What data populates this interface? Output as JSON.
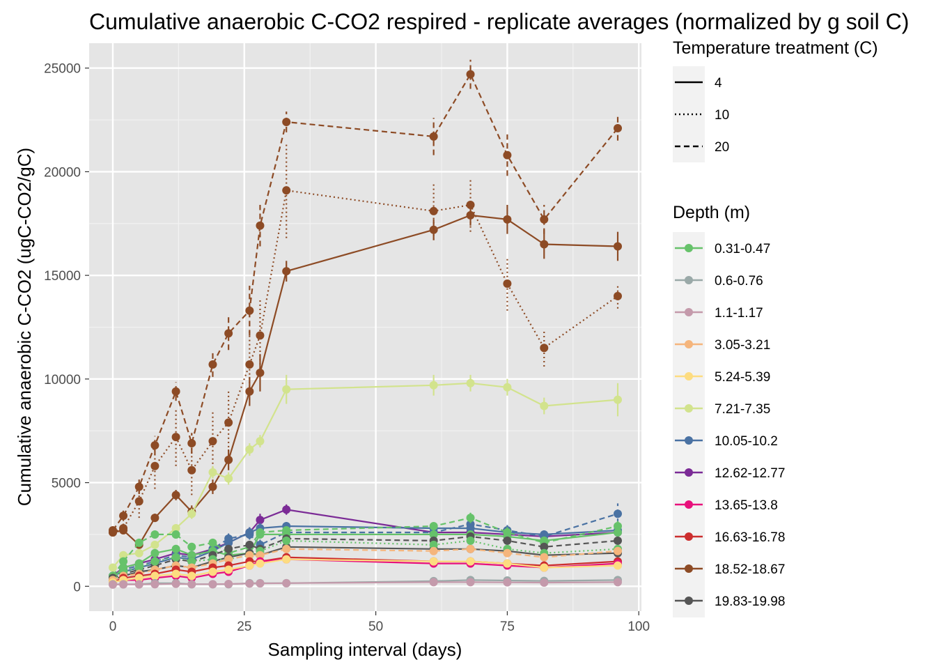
{
  "chart_data": {
    "type": "line",
    "title": "Cumulative anaerobic C-CO2 respired - replicate averages (normalized by g soil C)",
    "xlabel": "Sampling interval (days)",
    "ylabel": "Cumulative anaerobic C-CO2 (ugC-CO2/gC)",
    "xlim": [
      -4.5,
      100.5
    ],
    "ylim": [
      -1200,
      26200
    ],
    "x_ticks": [
      0,
      25,
      50,
      75,
      100
    ],
    "x_tick_labels": [
      "0",
      "25",
      "50",
      "75",
      "100"
    ],
    "y_ticks": [
      0,
      5000,
      10000,
      15000,
      20000,
      25000
    ],
    "y_tick_labels": [
      "0",
      "5000",
      "10000",
      "15000",
      "20000",
      "25000"
    ],
    "grid": true,
    "days": [
      0,
      2,
      5,
      8,
      12,
      15,
      19,
      22,
      26,
      28,
      33,
      61,
      68,
      75,
      82,
      96
    ],
    "legend_temperature": {
      "title": "Temperature treatment (C)",
      "items": [
        {
          "label": "4",
          "dash": "solid"
        },
        {
          "label": "10",
          "dash": "dotted"
        },
        {
          "label": "20",
          "dash": "dashed"
        }
      ]
    },
    "legend_depth": {
      "title": "Depth (m)",
      "items": [
        {
          "label": "0.31-0.47",
          "color": "#66c26a"
        },
        {
          "label": "0.6-0.76",
          "color": "#9aa9a8"
        },
        {
          "label": "1.1-1.17",
          "color": "#c49aab"
        },
        {
          "label": "3.05-3.21",
          "color": "#f5b57c"
        },
        {
          "label": "5.24-5.39",
          "color": "#fddc80"
        },
        {
          "label": "7.21-7.35",
          "color": "#d2e38d"
        },
        {
          "label": "10.05-10.2",
          "color": "#4a72a3"
        },
        {
          "label": "12.62-12.77",
          "color": "#7b2b96"
        },
        {
          "label": "13.65-13.8",
          "color": "#e8117c"
        },
        {
          "label": "16.63-16.78",
          "color": "#cc2e2e"
        },
        {
          "label": "18.52-18.67",
          "color": "#8d4b25"
        },
        {
          "label": "19.83-19.98",
          "color": "#555555"
        }
      ]
    },
    "series": [
      {
        "depth": "18.52-18.67",
        "temperature": "4",
        "values": [
          2600,
          2700,
          2000,
          3300,
          4400,
          3600,
          4800,
          6100,
          9400,
          10300,
          15200,
          17200,
          17900,
          17700,
          16500,
          16400
        ],
        "err": [
          150,
          150,
          150,
          200,
          250,
          300,
          350,
          500,
          700,
          900,
          500,
          500,
          500,
          700,
          700,
          700
        ]
      },
      {
        "depth": "18.52-18.67",
        "temperature": "10",
        "values": [
          2600,
          2800,
          4100,
          5800,
          7200,
          5600,
          7000,
          7900,
          10700,
          12100,
          19100,
          18100,
          18400,
          14600,
          11500,
          14000
        ],
        "err": [
          150,
          250,
          800,
          1100,
          1400,
          1200,
          1500,
          1600,
          1700,
          1800,
          2300,
          1400,
          1300,
          1300,
          900,
          600
        ]
      },
      {
        "depth": "18.52-18.67",
        "temperature": "20",
        "values": [
          2700,
          3400,
          4800,
          6800,
          9400,
          6900,
          10700,
          12200,
          13300,
          17400,
          22400,
          21700,
          24700,
          20800,
          17700,
          22100
        ],
        "err": [
          150,
          250,
          350,
          450,
          450,
          500,
          600,
          800,
          1200,
          1000,
          500,
          900,
          700,
          1000,
          700,
          600
        ]
      },
      {
        "depth": "7.21-7.35",
        "temperature": "4",
        "values": [
          900,
          1500,
          1600,
          2000,
          2800,
          3500,
          5500,
          5200,
          6600,
          7000,
          9500,
          9700,
          9800,
          9600,
          8700,
          9000
        ],
        "err": [
          100,
          150,
          150,
          150,
          200,
          250,
          300,
          300,
          300,
          300,
          700,
          500,
          400,
          400,
          400,
          800
        ]
      },
      {
        "depth": "12.62-12.77",
        "temperature": "4",
        "values": [
          500,
          900,
          1100,
          1300,
          1600,
          1500,
          1800,
          2100,
          2600,
          3200,
          3700,
          2600,
          2600,
          2500,
          2400,
          2600
        ],
        "err": [
          80,
          100,
          100,
          120,
          150,
          150,
          200,
          200,
          250,
          300,
          250,
          200,
          200,
          200,
          200,
          200
        ]
      },
      {
        "depth": "10.05-10.2",
        "temperature": "4",
        "values": [
          500,
          700,
          900,
          1100,
          1400,
          1300,
          1700,
          2100,
          2600,
          2800,
          2900,
          2800,
          2800,
          2600,
          2500,
          2700
        ],
        "err": [
          80,
          100,
          100,
          120,
          150,
          150,
          200,
          200,
          250,
          250,
          200,
          200,
          200,
          200,
          200,
          200
        ]
      },
      {
        "depth": "10.05-10.2",
        "temperature": "20",
        "values": [
          500,
          800,
          1000,
          1200,
          1500,
          1400,
          1800,
          2300,
          2500,
          2000,
          2600,
          2600,
          3000,
          2700,
          2400,
          3500
        ],
        "err": [
          80,
          100,
          100,
          120,
          150,
          150,
          200,
          250,
          250,
          250,
          200,
          200,
          250,
          250,
          250,
          500
        ]
      },
      {
        "depth": "0.31-0.47",
        "temperature": "20",
        "values": [
          500,
          1200,
          2100,
          2500,
          2500,
          1900,
          2100,
          1600,
          1900,
          2600,
          2700,
          2900,
          3300,
          2600,
          2100,
          2900
        ],
        "err": [
          80,
          100,
          150,
          150,
          150,
          150,
          150,
          150,
          200,
          200,
          200,
          200,
          250,
          250,
          200,
          250
        ]
      },
      {
        "depth": "0.31-0.47",
        "temperature": "4",
        "values": [
          400,
          900,
          1100,
          1600,
          1800,
          1500,
          1700,
          1500,
          1600,
          2500,
          2500,
          2500,
          2500,
          2400,
          2200,
          2600
        ],
        "err": [
          80,
          100,
          100,
          120,
          150,
          150,
          150,
          150,
          150,
          200,
          200,
          200,
          200,
          200,
          200,
          200
        ]
      },
      {
        "depth": "19.83-19.98",
        "temperature": "20",
        "values": [
          400,
          600,
          800,
          1000,
          1300,
          1200,
          1500,
          1800,
          2000,
          1800,
          2300,
          2200,
          2400,
          2200,
          1900,
          2200
        ],
        "err": [
          60,
          80,
          100,
          100,
          120,
          120,
          150,
          150,
          200,
          200,
          200,
          200,
          200,
          200,
          200,
          200
        ]
      },
      {
        "depth": "19.83-19.98",
        "temperature": "4",
        "values": [
          300,
          500,
          700,
          800,
          1000,
          900,
          1200,
          1400,
          1600,
          1500,
          1900,
          1800,
          1800,
          1700,
          1500,
          1600
        ],
        "err": [
          60,
          80,
          100,
          100,
          120,
          120,
          150,
          150,
          150,
          150,
          150,
          150,
          150,
          150,
          150,
          150
        ]
      },
      {
        "depth": "0.31-0.47",
        "temperature": "10",
        "values": [
          300,
          700,
          900,
          1200,
          1400,
          1200,
          1300,
          1300,
          1500,
          1700,
          2200,
          2000,
          2200,
          1800,
          1600,
          1800
        ],
        "err": [
          60,
          80,
          100,
          100,
          120,
          120,
          150,
          150,
          150,
          150,
          200,
          200,
          200,
          150,
          150,
          150
        ]
      },
      {
        "depth": "3.05-3.21",
        "temperature": "20",
        "values": [
          300,
          500,
          600,
          800,
          1000,
          900,
          1100,
          1300,
          1500,
          1500,
          1800,
          1700,
          1800,
          1600,
          1400,
          1700
        ],
        "err": [
          60,
          80,
          80,
          100,
          100,
          100,
          120,
          120,
          150,
          150,
          150,
          150,
          150,
          150,
          150,
          150
        ]
      },
      {
        "depth": "16.63-16.78",
        "temperature": "4",
        "values": [
          200,
          400,
          500,
          600,
          800,
          700,
          900,
          1000,
          1200,
          1200,
          1400,
          1200,
          1200,
          1100,
          1000,
          1200
        ],
        "err": [
          50,
          60,
          80,
          80,
          100,
          100,
          100,
          120,
          120,
          120,
          150,
          150,
          150,
          150,
          150,
          150
        ]
      },
      {
        "depth": "13.65-13.8",
        "temperature": "4",
        "values": [
          200,
          300,
          300,
          400,
          500,
          400,
          600,
          700,
          1000,
          1200,
          1300,
          1100,
          1100,
          1000,
          900,
          1100
        ],
        "err": [
          50,
          60,
          60,
          80,
          80,
          80,
          100,
          100,
          120,
          120,
          150,
          150,
          150,
          150,
          150,
          150
        ]
      },
      {
        "depth": "5.24-5.39",
        "temperature": "4",
        "values": [
          200,
          300,
          400,
          500,
          600,
          500,
          700,
          800,
          1000,
          1100,
          1300,
          1200,
          1200,
          1100,
          900,
          1000
        ],
        "err": [
          50,
          60,
          60,
          80,
          80,
          80,
          100,
          100,
          120,
          120,
          150,
          150,
          150,
          150,
          150,
          150
        ]
      },
      {
        "depth": "0.6-0.76",
        "temperature": "4",
        "values": [
          100,
          100,
          100,
          150,
          150,
          100,
          100,
          100,
          150,
          150,
          150,
          250,
          300,
          280,
          260,
          300
        ],
        "err": [
          30,
          30,
          30,
          30,
          30,
          30,
          30,
          30,
          30,
          30,
          30,
          40,
          40,
          40,
          40,
          40
        ]
      },
      {
        "depth": "1.1-1.17",
        "temperature": "4",
        "values": [
          80,
          90,
          90,
          100,
          120,
          100,
          100,
          110,
          130,
          140,
          150,
          200,
          200,
          190,
          180,
          200
        ],
        "err": [
          30,
          30,
          30,
          30,
          30,
          30,
          30,
          30,
          30,
          30,
          30,
          40,
          40,
          40,
          40,
          40
        ]
      }
    ]
  }
}
